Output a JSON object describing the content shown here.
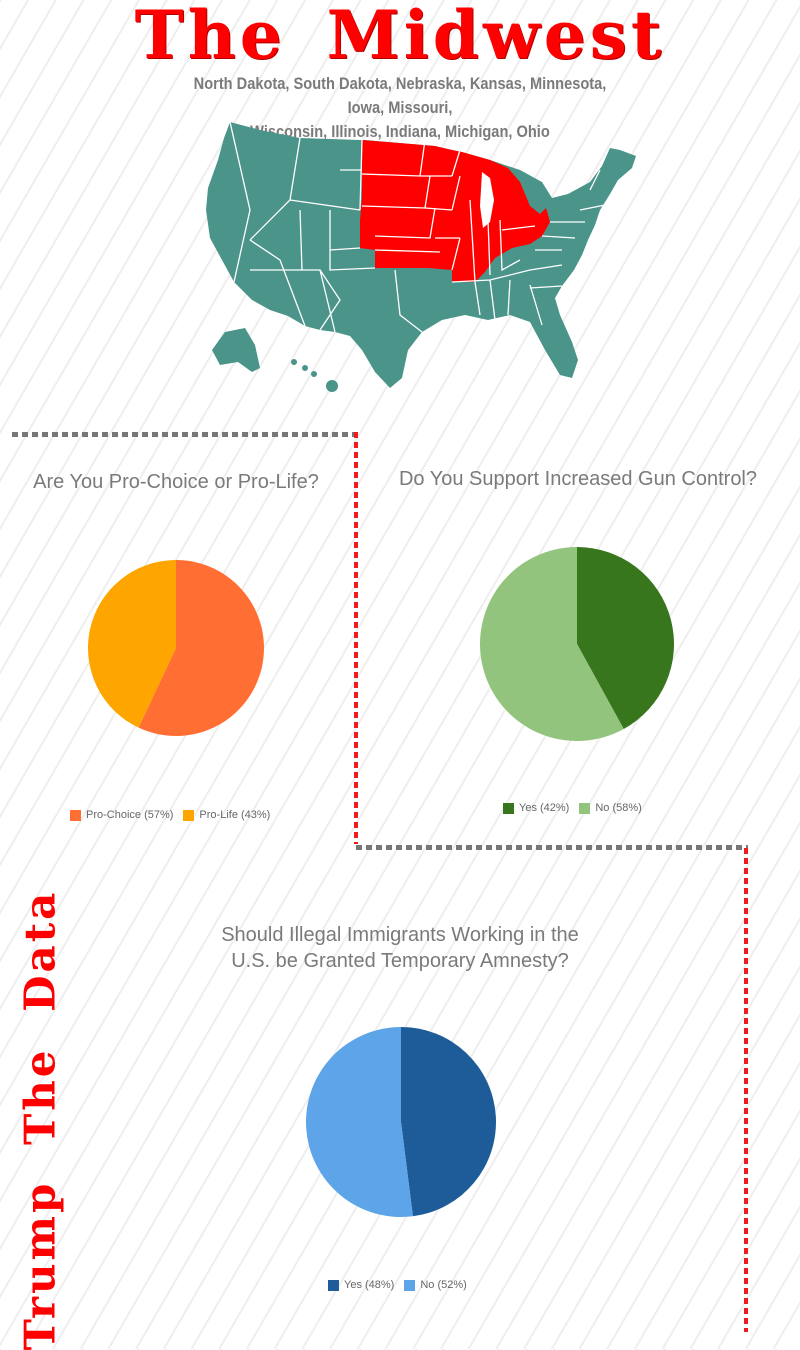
{
  "header": {
    "title": "The Midwest",
    "subtitle_line1": "North Dakota, South Dakota, Nebraska, Kansas, Minnesota, Iowa, Missouri,",
    "subtitle_line2": "Wisconsin, Illinois, Indiana, Michigan, Ohio"
  },
  "map": {
    "base_color": "#4a948a",
    "highlight_color": "#ff0000",
    "highlighted_region": "Midwest"
  },
  "side_label": "Trump The Data",
  "chart_data": [
    {
      "type": "pie",
      "title": "Are You Pro-Choice or Pro-Life?",
      "slices": [
        {
          "label": "Pro-Choice (57%)",
          "value": 57,
          "color": "#ff6f33"
        },
        {
          "label": "Pro-Life (43%)",
          "value": 43,
          "color": "#ffa500"
        }
      ]
    },
    {
      "type": "pie",
      "title": "Do You Support Increased Gun Control?",
      "slices": [
        {
          "label": "Yes (42%)",
          "value": 42,
          "color": "#38761d"
        },
        {
          "label": "No (58%)",
          "value": 58,
          "color": "#93c47d"
        }
      ]
    },
    {
      "type": "pie",
      "title_line1": "Should Illegal Immigrants Working in the",
      "title_line2": "U.S. be Granted Temporary Amnesty?",
      "slices": [
        {
          "label": "Yes (48%)",
          "value": 48,
          "color": "#1e5c99"
        },
        {
          "label": "No (52%)",
          "value": 52,
          "color": "#5da5e8"
        }
      ]
    }
  ]
}
